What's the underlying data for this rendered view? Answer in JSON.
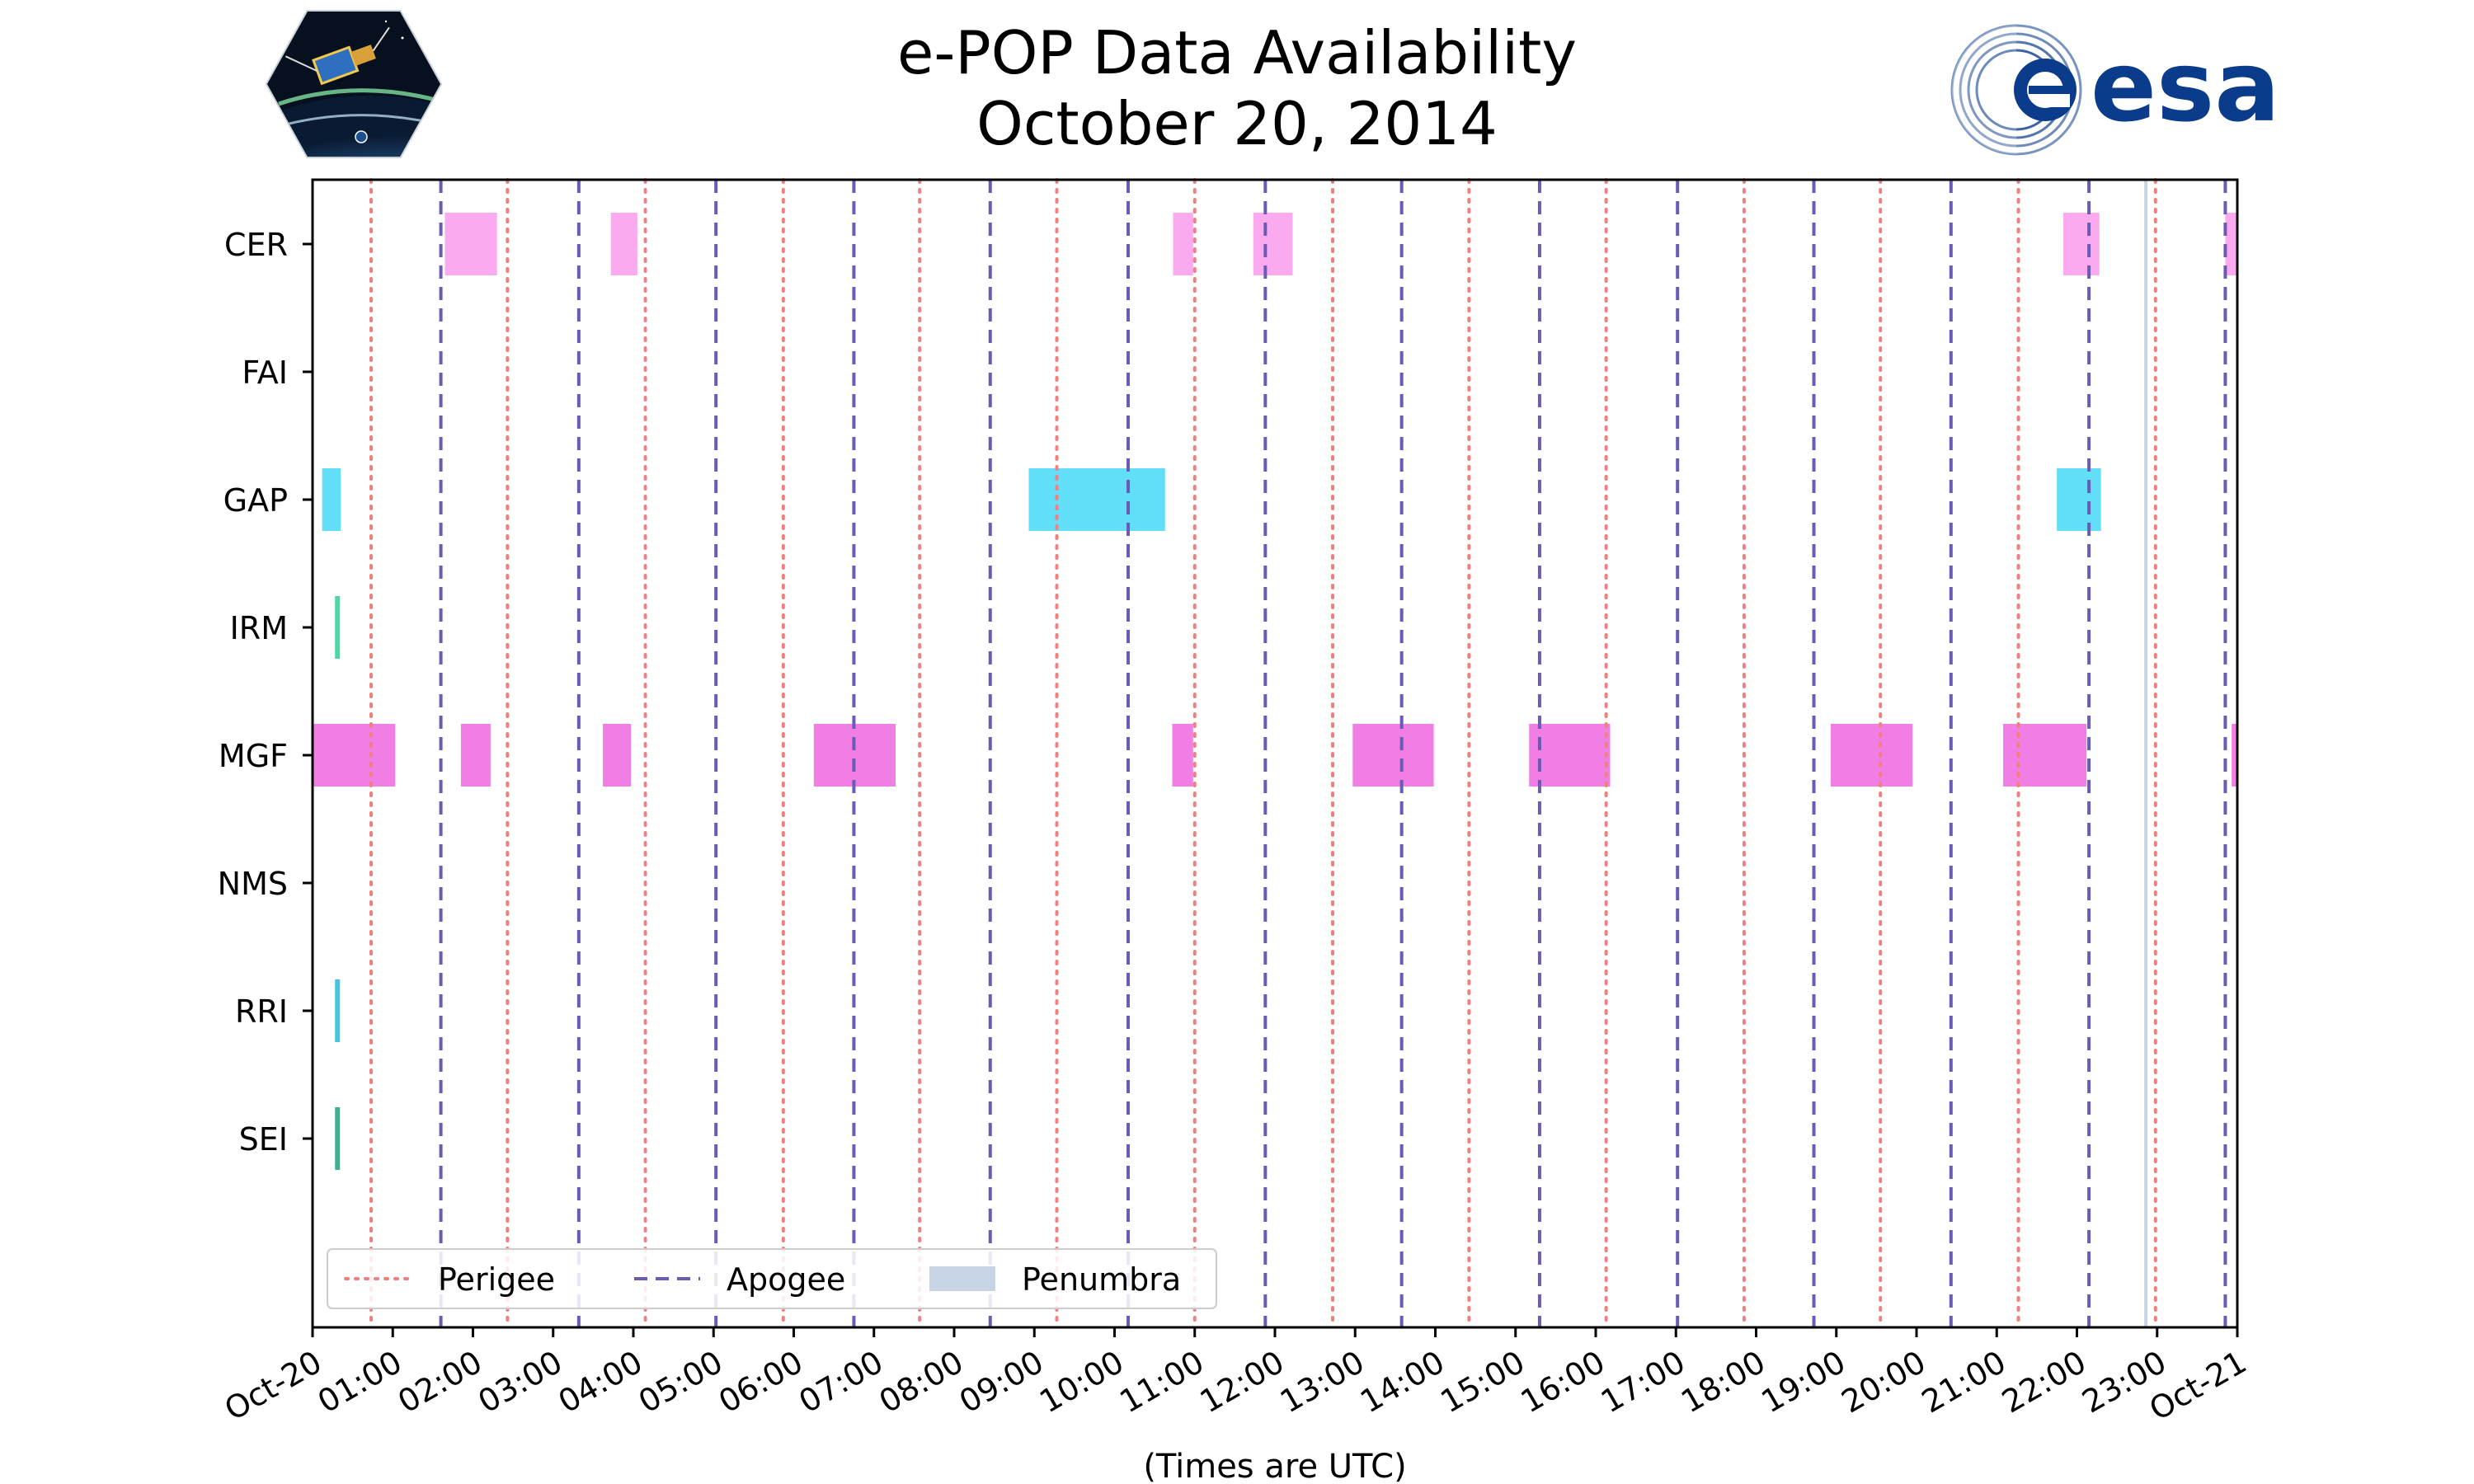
{
  "chart_data": {
    "type": "timeline",
    "title": [
      "e-POP Data Availability",
      "October 20, 2014"
    ],
    "xlabel": "(Times are UTC)",
    "x_range_hours": [
      0,
      24
    ],
    "x_ticks": [
      {
        "hour": 0,
        "label": "Oct-20"
      },
      {
        "hour": 1,
        "label": "01:00"
      },
      {
        "hour": 2,
        "label": "02:00"
      },
      {
        "hour": 3,
        "label": "03:00"
      },
      {
        "hour": 4,
        "label": "04:00"
      },
      {
        "hour": 5,
        "label": "05:00"
      },
      {
        "hour": 6,
        "label": "06:00"
      },
      {
        "hour": 7,
        "label": "07:00"
      },
      {
        "hour": 8,
        "label": "08:00"
      },
      {
        "hour": 9,
        "label": "09:00"
      },
      {
        "hour": 10,
        "label": "10:00"
      },
      {
        "hour": 11,
        "label": "11:00"
      },
      {
        "hour": 12,
        "label": "12:00"
      },
      {
        "hour": 13,
        "label": "13:00"
      },
      {
        "hour": 14,
        "label": "14:00"
      },
      {
        "hour": 15,
        "label": "15:00"
      },
      {
        "hour": 16,
        "label": "16:00"
      },
      {
        "hour": 17,
        "label": "17:00"
      },
      {
        "hour": 18,
        "label": "18:00"
      },
      {
        "hour": 19,
        "label": "19:00"
      },
      {
        "hour": 20,
        "label": "20:00"
      },
      {
        "hour": 21,
        "label": "21:00"
      },
      {
        "hour": 22,
        "label": "22:00"
      },
      {
        "hour": 23,
        "label": "23:00"
      },
      {
        "hour": 24,
        "label": "Oct-21"
      }
    ],
    "instruments": [
      "CER",
      "FAI",
      "GAP",
      "IRM",
      "MGF",
      "NMS",
      "RRI",
      "SEI"
    ],
    "colors": {
      "CER": "#fbaaf0",
      "FAI": "#a0a0f0",
      "GAP": "#62def8",
      "IRM": "#4fd6a5",
      "MGF": "#f07ee4",
      "NMS": "#b0b0b0",
      "RRI": "#44c5e0",
      "SEI": "#3db08f",
      "perigee": "#f08080",
      "apogee": "#6a5cb5",
      "penumbra": "#c6d4e6"
    },
    "intervals": [
      {
        "instrument": "CER",
        "start": 1.65,
        "end": 2.3
      },
      {
        "instrument": "CER",
        "start": 3.72,
        "end": 4.05
      },
      {
        "instrument": "CER",
        "start": 10.73,
        "end": 10.98
      },
      {
        "instrument": "CER",
        "start": 11.73,
        "end": 12.22
      },
      {
        "instrument": "CER",
        "start": 21.83,
        "end": 22.28
      },
      {
        "instrument": "CER",
        "start": 23.85,
        "end": 24.0
      },
      {
        "instrument": "GAP",
        "start": 0.12,
        "end": 0.35
      },
      {
        "instrument": "GAP",
        "start": 8.93,
        "end": 10.63
      },
      {
        "instrument": "GAP",
        "start": 21.75,
        "end": 22.3
      },
      {
        "instrument": "IRM",
        "start": 0.28,
        "end": 0.33
      },
      {
        "instrument": "MGF",
        "start": 0.0,
        "end": 1.03
      },
      {
        "instrument": "MGF",
        "start": 1.85,
        "end": 2.22
      },
      {
        "instrument": "MGF",
        "start": 3.62,
        "end": 3.97
      },
      {
        "instrument": "MGF",
        "start": 6.25,
        "end": 7.27
      },
      {
        "instrument": "MGF",
        "start": 10.72,
        "end": 10.98
      },
      {
        "instrument": "MGF",
        "start": 12.97,
        "end": 13.98
      },
      {
        "instrument": "MGF",
        "start": 15.17,
        "end": 16.18
      },
      {
        "instrument": "MGF",
        "start": 18.93,
        "end": 19.95
      },
      {
        "instrument": "MGF",
        "start": 21.08,
        "end": 22.12
      },
      {
        "instrument": "MGF",
        "start": 23.93,
        "end": 24.0
      },
      {
        "instrument": "RRI",
        "start": 0.28,
        "end": 0.33
      },
      {
        "instrument": "SEI",
        "start": 0.28,
        "end": 0.33
      }
    ],
    "perigee_hours": [
      0.73,
      2.43,
      4.15,
      5.87,
      7.57,
      9.28,
      11.0,
      12.72,
      14.42,
      16.13,
      17.85,
      19.55,
      21.27,
      22.98
    ],
    "apogee_hours": [
      1.6,
      3.32,
      5.03,
      6.75,
      8.45,
      10.17,
      11.88,
      13.58,
      15.3,
      17.02,
      18.72,
      20.43,
      22.15,
      23.85
    ],
    "penumbra_intervals": [
      {
        "start": 22.84,
        "end": 22.88
      }
    ],
    "legend": {
      "position": "bottom-left",
      "entries": [
        {
          "label": "Perigee",
          "style": "dotted"
        },
        {
          "label": "Apogee",
          "style": "dashed"
        },
        {
          "label": "Penumbra",
          "style": "patch"
        }
      ]
    }
  }
}
